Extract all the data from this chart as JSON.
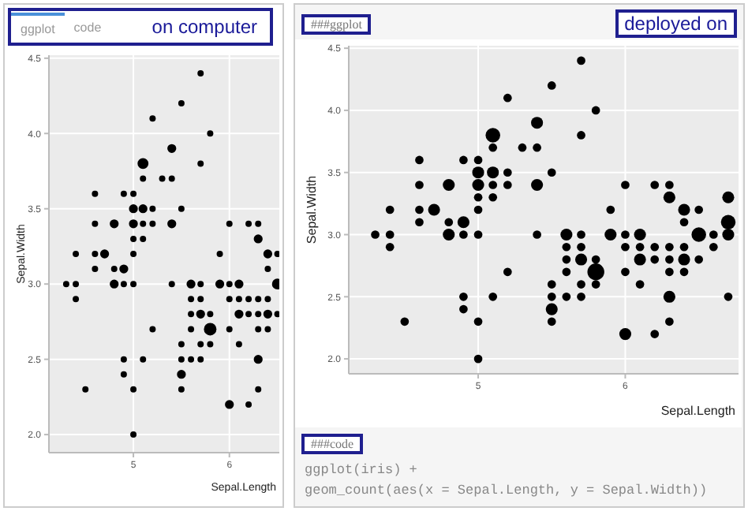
{
  "chart_data": [
    {
      "type": "bubble",
      "xlabel": "Sepal.Length",
      "ylabel": "Sepal.Width",
      "color": "#000000",
      "grid": true,
      "xlim": [
        4.12,
        6.52
      ],
      "ylim": [
        1.88,
        4.52
      ],
      "xticks": [
        {
          "value": 5,
          "label": "5"
        },
        {
          "value": 6,
          "label": "6"
        }
      ],
      "yticks": [
        {
          "value": 2,
          "label": "2.0"
        },
        2.5,
        {
          "value": 3,
          "label": "3.0"
        },
        3.5,
        {
          "value": 4,
          "label": "4.0"
        },
        4.5
      ],
      "annotations": [
        "ggplot",
        "code",
        "on computer"
      ],
      "x": [
        4.3,
        4.4,
        4.4,
        4.4,
        4.5,
        4.6,
        4.6,
        4.6,
        4.6,
        4.7,
        4.8,
        4.8,
        4.8,
        4.9,
        4.9,
        4.9,
        4.9,
        4.9,
        5.0,
        5.0,
        5.0,
        5.0,
        5.0,
        5.0,
        5.0,
        5.0,
        5.1,
        5.1,
        5.1,
        5.1,
        5.1,
        5.1,
        5.2,
        5.2,
        5.2,
        5.2,
        5.3,
        5.4,
        5.4,
        5.4,
        5.4,
        5.5,
        5.5,
        5.5,
        5.5,
        5.5,
        5.5,
        5.6,
        5.6,
        5.6,
        5.6,
        5.6,
        5.7,
        5.7,
        5.7,
        5.7,
        5.7,
        5.7,
        5.7,
        5.8,
        5.8,
        5.8,
        5.8,
        5.9,
        5.9,
        6.0,
        6.0,
        6.0,
        6.0,
        6.0,
        6.1,
        6.1,
        6.1,
        6.1,
        6.2,
        6.2,
        6.2,
        6.2,
        6.3,
        6.3,
        6.3,
        6.3,
        6.3,
        6.3,
        6.3,
        6.4,
        6.4,
        6.4,
        6.4,
        6.4,
        6.5,
        6.5,
        6.5
      ],
      "values": [
        3.0,
        2.9,
        3.0,
        3.2,
        2.3,
        3.1,
        3.2,
        3.4,
        3.6,
        3.2,
        3.0,
        3.1,
        3.4,
        2.4,
        2.5,
        3.0,
        3.1,
        3.6,
        2.0,
        2.3,
        3.0,
        3.2,
        3.3,
        3.4,
        3.5,
        3.6,
        2.5,
        3.3,
        3.4,
        3.5,
        3.7,
        3.8,
        2.7,
        3.4,
        3.5,
        4.1,
        3.7,
        3.0,
        3.4,
        3.7,
        3.9,
        2.3,
        2.4,
        2.5,
        2.6,
        3.5,
        4.2,
        2.5,
        2.7,
        2.8,
        2.9,
        3.0,
        2.5,
        2.6,
        2.8,
        2.9,
        3.0,
        3.8,
        4.4,
        2.6,
        2.7,
        2.8,
        4.0,
        3.0,
        3.2,
        2.2,
        2.7,
        2.9,
        3.0,
        3.4,
        2.6,
        2.8,
        2.9,
        3.0,
        2.2,
        2.8,
        2.9,
        3.4,
        2.3,
        2.5,
        2.7,
        2.8,
        2.9,
        3.3,
        3.4,
        2.7,
        2.8,
        2.9,
        3.1,
        3.2,
        2.8,
        3.0,
        3.2
      ],
      "sizes": [
        0.25,
        0.25,
        0.25,
        0.25,
        0.25,
        0.25,
        0.25,
        0.25,
        0.25,
        0.5,
        0.5,
        0.25,
        0.5,
        0.25,
        0.25,
        0.25,
        0.5,
        0.25,
        0.25,
        0.25,
        0.25,
        0.25,
        0.25,
        0.5,
        0.5,
        0.25,
        0.25,
        0.25,
        0.25,
        0.5,
        0.25,
        0.75,
        0.25,
        0.25,
        0.25,
        0.25,
        0.25,
        0.25,
        0.5,
        0.25,
        0.5,
        0.25,
        0.5,
        0.25,
        0.25,
        0.25,
        0.25,
        0.25,
        0.25,
        0.25,
        0.25,
        0.5,
        0.25,
        0.25,
        0.5,
        0.25,
        0.25,
        0.25,
        0.25,
        0.25,
        1,
        0.25,
        0.25,
        0.5,
        0.25,
        0.5,
        0.25,
        0.25,
        0.25,
        0.25,
        0.25,
        0.5,
        0.25,
        0.5,
        0.25,
        0.25,
        0.25,
        0.25,
        0.25,
        0.5,
        0.25,
        0.25,
        0.25,
        0.5,
        0.25,
        0.25,
        0.5,
        0.25,
        0.25,
        0.5,
        0.25,
        0.75,
        0.25
      ]
    },
    {
      "type": "bubble",
      "xlabel": "Sepal.Length",
      "ylabel": "Sepal.Width",
      "color": "#000000",
      "grid": true,
      "xlim": [
        4.12,
        6.77
      ],
      "ylim": [
        1.88,
        4.52
      ],
      "xticks": [
        5,
        6
      ],
      "yticks": [
        {
          "value": 2,
          "label": "2.0"
        },
        2.5,
        {
          "value": 3,
          "label": "3.0"
        },
        3.5,
        {
          "value": 4,
          "label": "4.0"
        },
        4.5
      ],
      "annotations": [
        "###ggplot",
        "deployed on",
        "###code",
        "ggplot(iris) +",
        "geom_count(aes(x = Sepal.Length, y = Sepal.Width))"
      ],
      "x": [
        4.3,
        4.4,
        4.4,
        4.4,
        4.5,
        4.6,
        4.6,
        4.6,
        4.6,
        4.7,
        4.8,
        4.8,
        4.8,
        4.9,
        4.9,
        4.9,
        4.9,
        4.9,
        5.0,
        5.0,
        5.0,
        5.0,
        5.0,
        5.0,
        5.0,
        5.0,
        5.1,
        5.1,
        5.1,
        5.1,
        5.1,
        5.1,
        5.2,
        5.2,
        5.2,
        5.2,
        5.3,
        5.4,
        5.4,
        5.4,
        5.4,
        5.5,
        5.5,
        5.5,
        5.5,
        5.5,
        5.5,
        5.6,
        5.6,
        5.6,
        5.6,
        5.6,
        5.7,
        5.7,
        5.7,
        5.7,
        5.7,
        5.7,
        5.7,
        5.8,
        5.8,
        5.8,
        5.8,
        5.9,
        5.9,
        6.0,
        6.0,
        6.0,
        6.0,
        6.0,
        6.1,
        6.1,
        6.1,
        6.1,
        6.2,
        6.2,
        6.2,
        6.2,
        6.3,
        6.3,
        6.3,
        6.3,
        6.3,
        6.3,
        6.3,
        6.4,
        6.4,
        6.4,
        6.4,
        6.4,
        6.5,
        6.5,
        6.5,
        6.6,
        6.6,
        6.7,
        6.7,
        6.7,
        6.7
      ],
      "values": [
        3.0,
        2.9,
        3.0,
        3.2,
        2.3,
        3.1,
        3.2,
        3.4,
        3.6,
        3.2,
        3.0,
        3.1,
        3.4,
        2.4,
        2.5,
        3.0,
        3.1,
        3.6,
        2.0,
        2.3,
        3.0,
        3.2,
        3.3,
        3.4,
        3.5,
        3.6,
        2.5,
        3.3,
        3.4,
        3.5,
        3.7,
        3.8,
        2.7,
        3.4,
        3.5,
        4.1,
        3.7,
        3.0,
        3.4,
        3.7,
        3.9,
        2.3,
        2.4,
        2.5,
        2.6,
        3.5,
        4.2,
        2.5,
        2.7,
        2.8,
        2.9,
        3.0,
        2.5,
        2.6,
        2.8,
        2.9,
        3.0,
        3.8,
        4.4,
        2.6,
        2.7,
        2.8,
        4.0,
        3.0,
        3.2,
        2.2,
        2.7,
        2.9,
        3.0,
        3.4,
        2.6,
        2.8,
        2.9,
        3.0,
        2.2,
        2.8,
        2.9,
        3.4,
        2.3,
        2.5,
        2.7,
        2.8,
        2.9,
        3.3,
        3.4,
        2.7,
        2.8,
        2.9,
        3.1,
        3.2,
        2.8,
        3.0,
        3.2,
        2.9,
        3.0,
        2.5,
        3.0,
        3.1,
        3.3
      ],
      "sizes": [
        0.25,
        0.25,
        0.25,
        0.25,
        0.25,
        0.25,
        0.25,
        0.25,
        0.25,
        0.5,
        0.5,
        0.25,
        0.5,
        0.25,
        0.25,
        0.25,
        0.5,
        0.25,
        0.25,
        0.25,
        0.25,
        0.25,
        0.25,
        0.5,
        0.5,
        0.25,
        0.25,
        0.25,
        0.25,
        0.5,
        0.25,
        0.75,
        0.25,
        0.25,
        0.25,
        0.25,
        0.25,
        0.25,
        0.5,
        0.25,
        0.5,
        0.25,
        0.5,
        0.25,
        0.25,
        0.25,
        0.25,
        0.25,
        0.25,
        0.25,
        0.25,
        0.5,
        0.25,
        0.25,
        0.5,
        0.25,
        0.25,
        0.25,
        0.25,
        0.25,
        1,
        0.25,
        0.25,
        0.5,
        0.25,
        0.5,
        0.25,
        0.25,
        0.25,
        0.25,
        0.25,
        0.5,
        0.25,
        0.5,
        0.25,
        0.25,
        0.25,
        0.25,
        0.25,
        0.5,
        0.25,
        0.25,
        0.25,
        0.5,
        0.25,
        0.25,
        0.5,
        0.25,
        0.25,
        0.5,
        0.25,
        0.75,
        0.25,
        0.25,
        0.25,
        0.25,
        0.5,
        0.75,
        0.5
      ]
    }
  ]
}
